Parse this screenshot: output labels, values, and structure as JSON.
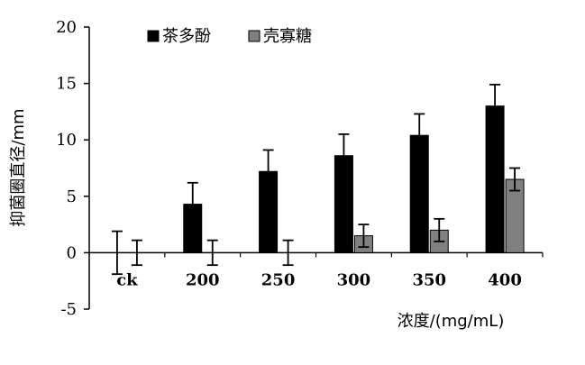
{
  "chart_data": {
    "type": "bar",
    "categories": [
      "ck",
      "200",
      "250",
      "300",
      "350",
      "400"
    ],
    "series": [
      {
        "name": "茶多酚",
        "color": "#000000",
        "values": [
          0,
          4.3,
          7.2,
          8.6,
          10.4,
          13.0
        ],
        "errors": [
          1.9,
          1.9,
          1.9,
          1.9,
          1.9,
          1.9
        ]
      },
      {
        "name": "壳寡糖",
        "color": "#808080",
        "values": [
          0,
          0,
          0,
          1.5,
          2.0,
          6.5
        ],
        "errors": [
          1.1,
          1.1,
          1.1,
          1.0,
          1.0,
          1.0
        ]
      }
    ],
    "ylim": [
      -5,
      20
    ],
    "yticks": [
      -5,
      0,
      5,
      10,
      15,
      20
    ],
    "ylabel": "抑菌圈直径/mm",
    "xlabel": "浓度/(mg/mL)",
    "grid": false,
    "legend": "top-left"
  }
}
